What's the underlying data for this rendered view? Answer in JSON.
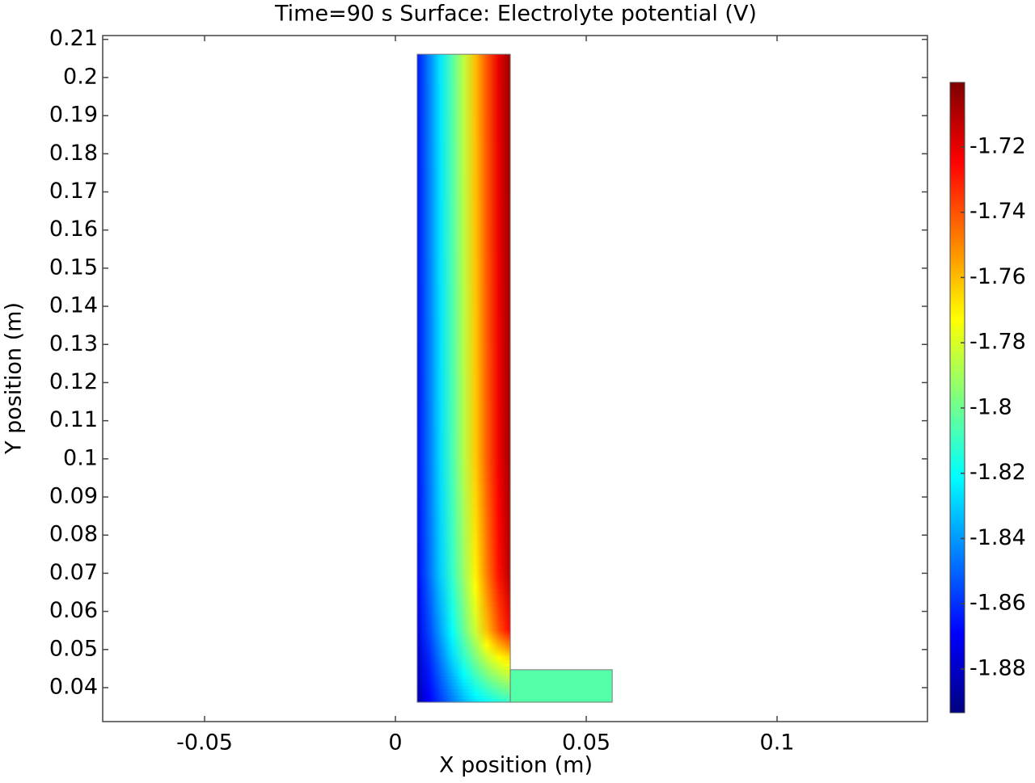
{
  "chart_data": {
    "type": "surface",
    "title": "Time=90 s   Surface: Electrolyte potential (V)",
    "xlabel": "X position (m)",
    "ylabel": "Y position (m)",
    "xlim": [
      -0.0767,
      0.1394
    ],
    "ylim": [
      0.0311,
      0.211
    ],
    "xticks": [
      -0.05,
      0,
      0.05,
      0.1
    ],
    "yticks": [
      0.04,
      0.05,
      0.06,
      0.07,
      0.08,
      0.09,
      0.1,
      0.11,
      0.12,
      0.13,
      0.14,
      0.15,
      0.16,
      0.17,
      0.18,
      0.19,
      0.2,
      0.21
    ],
    "colorbar": {
      "clim": [
        -1.8934,
        -1.7002
      ],
      "ticks": [
        -1.72,
        -1.74,
        -1.76,
        -1.78,
        -1.8,
        -1.82,
        -1.84,
        -1.86,
        -1.88
      ],
      "colormap": [
        "#00007f",
        "#0000ff",
        "#007fff",
        "#00ffff",
        "#7fff7f",
        "#ffff00",
        "#ff7f00",
        "#ff0000",
        "#7f0000"
      ]
    },
    "fields": [
      {
        "x": [
          0.0057,
          0.0088,
          0.0118,
          0.0149,
          0.0179,
          0.021,
          0.024,
          0.0271,
          0.0301
        ],
        "y": [
          0.2061,
          0.1,
          0.07,
          0.055,
          0.048,
          0.0362
        ],
        "values": [
          [
            -1.865,
            -1.845,
            -1.825,
            -1.805,
            -1.785,
            -1.76,
            -1.74,
            -1.72,
            -1.705
          ],
          [
            -1.866,
            -1.847,
            -1.827,
            -1.807,
            -1.787,
            -1.763,
            -1.742,
            -1.722,
            -1.706
          ],
          [
            -1.868,
            -1.849,
            -1.83,
            -1.811,
            -1.792,
            -1.77,
            -1.748,
            -1.727,
            -1.71
          ],
          [
            -1.874,
            -1.856,
            -1.838,
            -1.82,
            -1.801,
            -1.782,
            -1.76,
            -1.74,
            -1.725
          ],
          [
            -1.879,
            -1.862,
            -1.845,
            -1.828,
            -1.812,
            -1.797,
            -1.783,
            -1.772,
            -1.765
          ],
          [
            -1.885,
            -1.87,
            -1.858,
            -1.846,
            -1.835,
            -1.826,
            -1.82,
            -1.815,
            -1.81
          ]
        ]
      },
      {
        "x": [
          0.0301,
          0.0568
        ],
        "y": [
          0.0447,
          0.0362
        ],
        "values": [
          [
            -1.805,
            -1.805
          ],
          [
            -1.805,
            -1.805
          ]
        ]
      }
    ]
  }
}
